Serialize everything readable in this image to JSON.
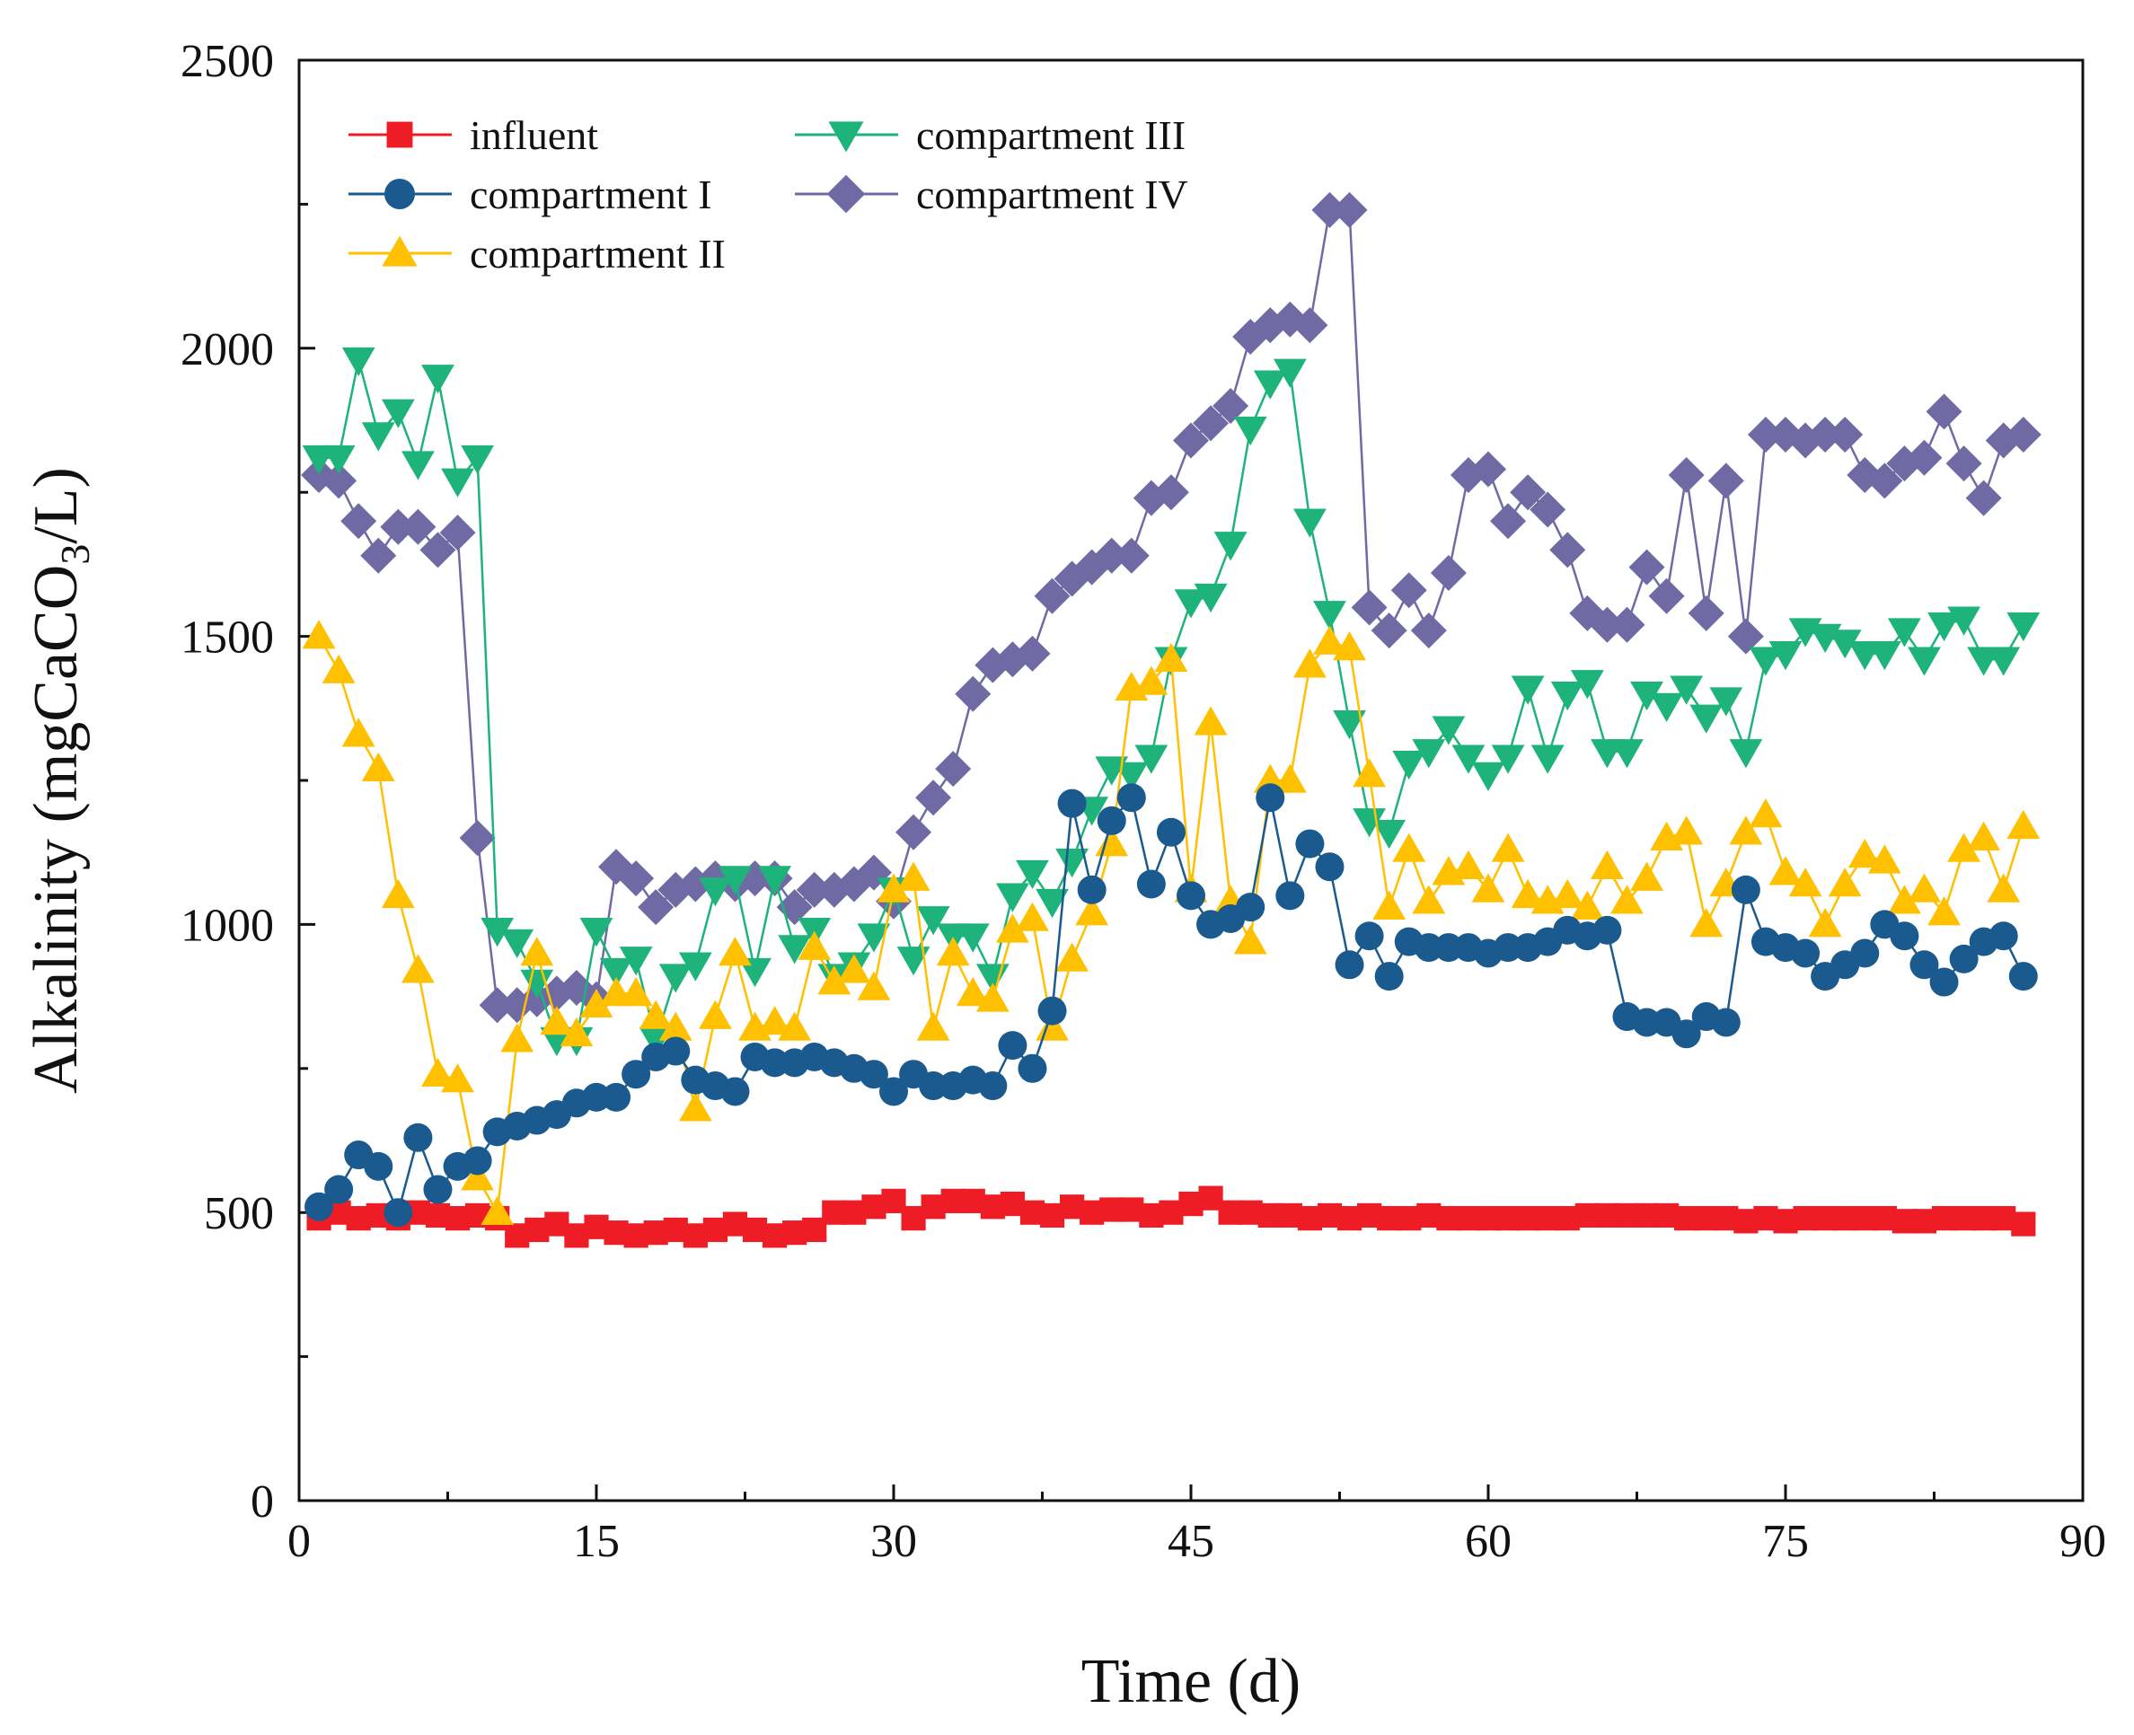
{
  "chart_data": {
    "type": "line",
    "title": "",
    "xlabel": "Time (d)",
    "ylabel_main": "Alkalinity (mgCaCO",
    "ylabel_sub": "3",
    "ylabel_tail": "/L)",
    "xlim": [
      0,
      90
    ],
    "ylim": [
      0,
      2500
    ],
    "xticks": [
      0,
      15,
      30,
      45,
      60,
      75,
      90
    ],
    "xtick_labels": [
      "0",
      "15",
      "30",
      "45",
      "60",
      "75",
      "90"
    ],
    "yticks": [
      0,
      500,
      1000,
      1500,
      2000,
      2500
    ],
    "ytick_labels": [
      "0",
      "500",
      "1000",
      "1500",
      "2000",
      "2500"
    ],
    "grid": false,
    "legend_position": "top-left",
    "x": [
      1,
      2,
      3,
      4,
      5,
      6,
      7,
      8,
      9,
      10,
      11,
      12,
      13,
      14,
      15,
      16,
      17,
      18,
      19,
      20,
      21,
      22,
      23,
      24,
      25,
      26,
      27,
      28,
      29,
      30,
      31,
      32,
      33,
      34,
      35,
      36,
      37,
      38,
      39,
      40,
      41,
      42,
      43,
      44,
      45,
      46,
      47,
      48,
      49,
      50,
      51,
      52,
      53,
      54,
      55,
      56,
      57,
      58,
      59,
      60,
      61,
      62,
      63,
      64,
      65,
      66,
      67,
      68,
      69,
      70,
      71,
      72,
      73,
      74,
      75,
      76,
      77,
      78,
      79,
      80,
      81,
      82,
      83,
      84,
      85,
      86,
      87
    ],
    "series": [
      {
        "name": "influent",
        "color": "#ee1c25",
        "marker": "square",
        "values": [
          490,
          500,
          490,
          495,
          490,
          500,
          495,
          490,
          495,
          490,
          460,
          470,
          480,
          460,
          475,
          465,
          460,
          465,
          470,
          460,
          470,
          480,
          470,
          460,
          465,
          470,
          500,
          500,
          510,
          520,
          490,
          510,
          520,
          520,
          510,
          515,
          500,
          495,
          510,
          500,
          505,
          505,
          495,
          500,
          515,
          525,
          500,
          500,
          495,
          495,
          490,
          495,
          490,
          495,
          490,
          490,
          495,
          490,
          490,
          490,
          490,
          490,
          490,
          490,
          495,
          495,
          495,
          495,
          495,
          490,
          490,
          490,
          485,
          490,
          485,
          490,
          490,
          490,
          490,
          490,
          485,
          485,
          490,
          490,
          490,
          490,
          480
        ]
      },
      {
        "name": "compartment I",
        "color": "#1b5a8e",
        "marker": "circle",
        "values": [
          510,
          540,
          600,
          580,
          500,
          630,
          540,
          580,
          590,
          640,
          650,
          660,
          670,
          690,
          700,
          700,
          740,
          770,
          780,
          730,
          720,
          710,
          770,
          760,
          760,
          770,
          760,
          750,
          740,
          710,
          740,
          720,
          720,
          730,
          720,
          790,
          750,
          850,
          1210,
          1060,
          1180,
          1220,
          1070,
          1160,
          1050,
          1000,
          1010,
          1030,
          1220,
          1050,
          1140,
          1100,
          930,
          980,
          910,
          970,
          960,
          960,
          960,
          950,
          960,
          960,
          970,
          990,
          980,
          990,
          840,
          830,
          830,
          810,
          840,
          830,
          1060,
          970,
          960,
          950,
          910,
          930,
          950,
          1000,
          980,
          930,
          900,
          940,
          970,
          980,
          910
        ]
      },
      {
        "name": "compartment II",
        "color": "#ffc000",
        "marker": "triangle-up",
        "values": [
          1500,
          1440,
          1330,
          1270,
          1050,
          920,
          740,
          730,
          560,
          500,
          800,
          950,
          830,
          810,
          860,
          880,
          880,
          840,
          820,
          680,
          840,
          950,
          820,
          830,
          820,
          960,
          900,
          920,
          890,
          1060,
          1080,
          820,
          950,
          880,
          870,
          990,
          1010,
          820,
          940,
          1020,
          1140,
          1410,
          1420,
          1460,
          1060,
          1350,
          1040,
          970,
          1250,
          1250,
          1450,
          1490,
          1480,
          1260,
          1030,
          1130,
          1040,
          1090,
          1100,
          1060,
          1130,
          1050,
          1040,
          1050,
          1030,
          1100,
          1040,
          1080,
          1150,
          1160,
          1000,
          1070,
          1160,
          1190,
          1090,
          1070,
          1000,
          1070,
          1120,
          1110,
          1040,
          1060,
          1020,
          1130,
          1150,
          1060,
          1170
        ]
      },
      {
        "name": "compartment III",
        "color": "#1db37a",
        "marker": "triangle-down",
        "values": [
          1810,
          1810,
          1980,
          1850,
          1890,
          1800,
          1950,
          1770,
          1810,
          990,
          970,
          900,
          800,
          800,
          990,
          920,
          940,
          800,
          910,
          930,
          1060,
          1080,
          920,
          1080,
          960,
          990,
          910,
          930,
          980,
          1060,
          940,
          1010,
          980,
          980,
          910,
          1050,
          1090,
          1040,
          1110,
          1200,
          1270,
          1260,
          1290,
          1460,
          1560,
          1570,
          1660,
          1860,
          1940,
          1960,
          1700,
          1540,
          1350,
          1180,
          1160,
          1280,
          1300,
          1340,
          1290,
          1260,
          1290,
          1410,
          1290,
          1400,
          1420,
          1300,
          1300,
          1400,
          1380,
          1410,
          1360,
          1390,
          1300,
          1460,
          1470,
          1510,
          1500,
          1490,
          1470,
          1470,
          1510,
          1460,
          1520,
          1530,
          1460,
          1460,
          1520
        ]
      },
      {
        "name": "compartment IV",
        "color": "#6f6aa3",
        "marker": "diamond",
        "values": [
          1780,
          1770,
          1700,
          1640,
          1690,
          1690,
          1650,
          1680,
          1150,
          860,
          860,
          870,
          880,
          890,
          870,
          1100,
          1080,
          1030,
          1060,
          1070,
          1080,
          1070,
          1080,
          1080,
          1030,
          1060,
          1060,
          1070,
          1090,
          1040,
          1160,
          1220,
          1270,
          1400,
          1450,
          1460,
          1470,
          1570,
          1600,
          1620,
          1640,
          1640,
          1740,
          1750,
          1840,
          1870,
          1900,
          2020,
          2040,
          2050,
          2040,
          2240,
          2240,
          1550,
          1510,
          1580,
          1510,
          1610,
          1780,
          1790,
          1700,
          1750,
          1720,
          1650,
          1540,
          1520,
          1520,
          1620,
          1570,
          1780,
          1540,
          1770,
          1500,
          1850,
          1850,
          1840,
          1850,
          1850,
          1780,
          1770,
          1800,
          1810,
          1890,
          1800,
          1740,
          1840,
          1850
        ]
      }
    ]
  }
}
